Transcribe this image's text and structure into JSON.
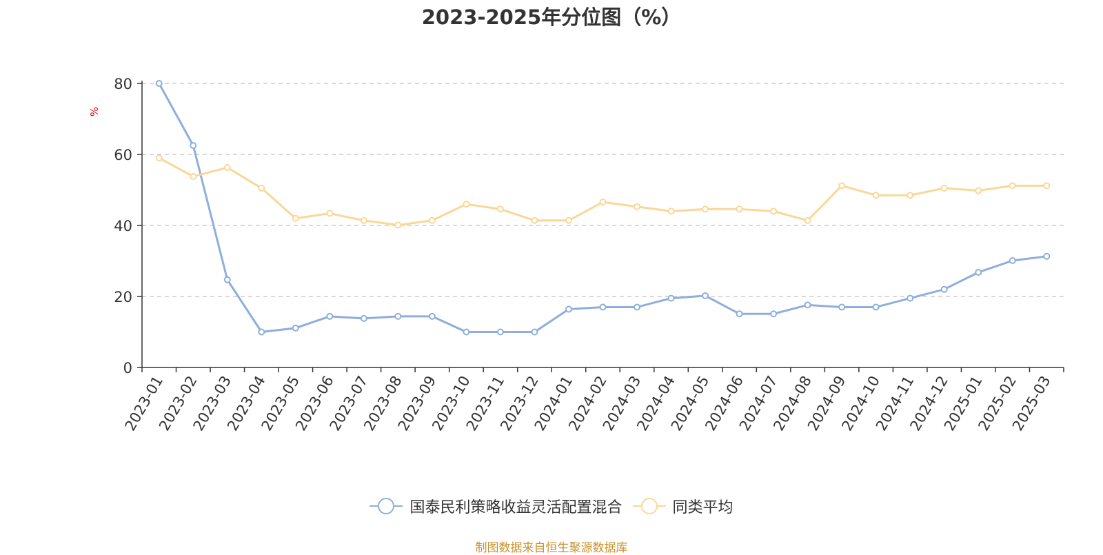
{
  "page": {
    "source_note": "制图数据来自恒生聚源数据库"
  },
  "chart_data": {
    "type": "line",
    "title": "2023-2025年分位图（%）",
    "ylabel": "%",
    "xlabel": "",
    "ylim": [
      0,
      80
    ],
    "yticks": [
      0,
      20,
      40,
      60,
      80
    ],
    "grid": true,
    "legend_position": "bottom",
    "categories": [
      "2023-01",
      "2023-02",
      "2023-03",
      "2023-04",
      "2023-05",
      "2023-06",
      "2023-07",
      "2023-08",
      "2023-09",
      "2023-10",
      "2023-11",
      "2023-12",
      "2024-01",
      "2024-02",
      "2024-03",
      "2024-04",
      "2024-05",
      "2024-06",
      "2024-07",
      "2024-08",
      "2024-09",
      "2024-10",
      "2024-11",
      "2024-12",
      "2025-01",
      "2025-02",
      "2025-03"
    ],
    "series": [
      {
        "name": "国泰民利策略收益灵活配置混合",
        "color": "#8eaedb",
        "values": [
          80,
          62.5,
          24.7,
          10,
          11.1,
          14.4,
          13.8,
          14.4,
          14.4,
          10,
          10,
          10,
          16.4,
          17,
          17,
          19.5,
          20.2,
          15.1,
          15.1,
          17.6,
          17,
          17,
          19.5,
          22,
          26.8,
          30.1,
          31.3
        ]
      },
      {
        "name": "同类平均",
        "color": "#fad797",
        "values": [
          59,
          53.8,
          56.3,
          50.5,
          42,
          43.4,
          41.4,
          40.1,
          41.4,
          46,
          44.6,
          41.4,
          41.4,
          46.6,
          45.3,
          44,
          44.6,
          44.6,
          44,
          41.4,
          51.2,
          48.5,
          48.5,
          50.5,
          49.8,
          51.2,
          51.2
        ]
      }
    ]
  }
}
